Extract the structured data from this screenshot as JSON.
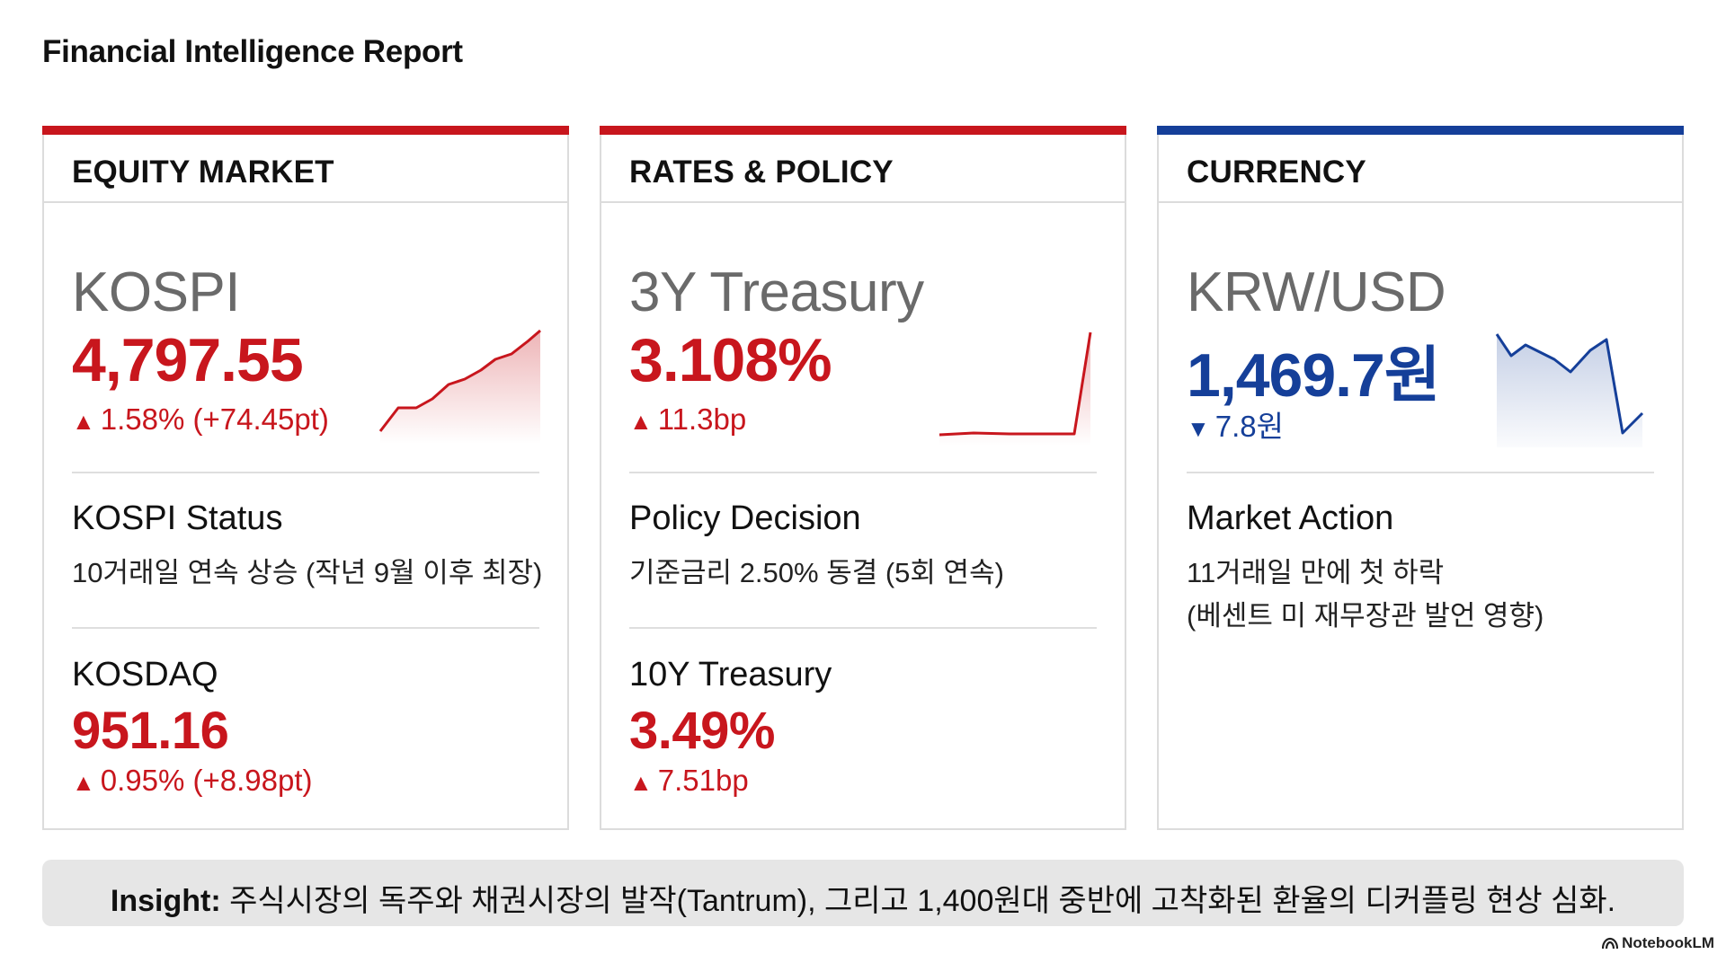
{
  "page": {
    "title": "Financial Intelligence Report"
  },
  "colors": {
    "red": "#c8161d",
    "blue": "#153f99"
  },
  "cards": [
    {
      "header": "EQUITY MARKET",
      "accent": "#c8161d",
      "primary": {
        "label": "KOSPI",
        "value": "4,797.55",
        "change": "1.58% (+74.45pt)",
        "direction": "up",
        "arrow": "▲"
      },
      "status": {
        "label": "KOSPI Status",
        "text": "10거래일 연속 상승 (작년 9월 이후 최장)"
      },
      "secondary": {
        "label": "KOSDAQ",
        "value": "951.16",
        "change": "0.95% (+8.98pt)",
        "arrow": "▲"
      }
    },
    {
      "header": "RATES & POLICY",
      "accent": "#c8161d",
      "primary": {
        "label": "3Y Treasury",
        "value": "3.108%",
        "change": "11.3bp",
        "direction": "up",
        "arrow": "▲"
      },
      "status": {
        "label": "Policy Decision",
        "text": "기준금리 2.50% 동결 (5회 연속)"
      },
      "secondary": {
        "label": "10Y Treasury",
        "value": "3.49%",
        "change": "7.51bp",
        "arrow": "▲"
      }
    },
    {
      "header": "CURRENCY",
      "accent": "#153f99",
      "primary": {
        "label": "KRW/USD",
        "value": "1,469.7원",
        "change": "7.8원",
        "direction": "down",
        "arrow": "▼"
      },
      "status": {
        "label": "Market Action",
        "text_line1": "11거래일 만에 첫 하락",
        "text_line2": "(베센트 미 재무장관 발언 영향)"
      }
    }
  ],
  "insight": {
    "label": "Insight:",
    "text": "주식시장의 독주와 채권시장의 발작(Tantrum), 그리고 1,400원대 중반에 고착화된 환율의 디커플링 현상 심화."
  },
  "brand": {
    "name": "NotebookLM"
  }
}
